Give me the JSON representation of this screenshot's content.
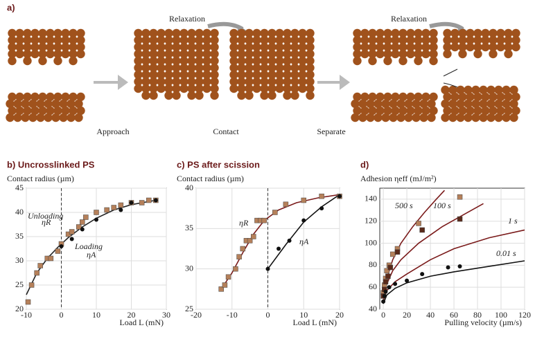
{
  "panel_a": {
    "label": "a)",
    "relax_1": "Relaxation",
    "relax_2": "Relaxation",
    "approach": "Approach",
    "contact": "Contact",
    "separate": "Separate"
  },
  "chart_data": [
    {
      "type": "scatter",
      "title": "b) Uncrosslinked PS",
      "ylabel": "Contact radius (µm)",
      "xlabel": "Load L (mN)",
      "xlim": [
        -10,
        30
      ],
      "ylim": [
        20,
        45
      ],
      "xticks": [
        -10,
        0,
        10,
        20,
        30
      ],
      "yticks": [
        20,
        25,
        30,
        35,
        40,
        45
      ],
      "zero_line": true,
      "annotations": [
        "Unloading",
        "ηR",
        "Loading",
        "ηA"
      ],
      "series": [
        {
          "marker": "line",
          "color": "#222",
          "x": [
            -10,
            -7,
            -4,
            -1,
            2,
            6,
            10,
            15,
            20,
            27
          ],
          "values": [
            23,
            27.5,
            30.5,
            32.8,
            34.8,
            37,
            38.8,
            40.5,
            41.6,
            42.5
          ]
        },
        {
          "marker": "square",
          "color": "#b5805a",
          "x": [
            -9.5,
            -8.5,
            -7,
            -6,
            -4,
            -3,
            -1,
            0,
            2,
            3,
            5,
            6,
            7,
            10,
            13,
            15,
            17,
            20,
            23,
            25,
            27
          ],
          "values": [
            21.5,
            25,
            27.5,
            29,
            30.5,
            30.5,
            32,
            33.5,
            35.5,
            36,
            37,
            38,
            39,
            40,
            40.5,
            41,
            41.5,
            42,
            42,
            42.5,
            42.5
          ]
        },
        {
          "marker": "circle",
          "color": "#111",
          "x": [
            0,
            3,
            6,
            10,
            17,
            20,
            27
          ],
          "values": [
            33,
            34.5,
            36.5,
            38.5,
            40.5,
            42,
            42.5
          ]
        }
      ]
    },
    {
      "type": "scatter",
      "title": "c) PS after scission",
      "ylabel": "Contact radius (µm)",
      "xlabel": "Load L (mN)",
      "xlim": [
        -20,
        20
      ],
      "ylim": [
        25,
        40
      ],
      "xticks": [
        -20,
        -10,
        0,
        10,
        20
      ],
      "yticks": [
        25,
        30,
        35,
        40
      ],
      "zero_line": true,
      "annotations": [
        "ηR",
        "ηA"
      ],
      "series": [
        {
          "marker": "line",
          "color": "#7a1a1a",
          "x": [
            -13,
            -10,
            -7,
            -4,
            -1,
            3,
            8,
            14,
            20
          ],
          "values": [
            27.5,
            29.5,
            32,
            34.3,
            36,
            37.3,
            38.2,
            38.8,
            39.2
          ]
        },
        {
          "marker": "line",
          "color": "#111",
          "x": [
            0,
            5,
            10,
            15,
            20
          ],
          "values": [
            30,
            33,
            35.8,
            37.7,
            39.2
          ]
        },
        {
          "marker": "square",
          "color": "#b5805a",
          "x": [
            -13,
            -12,
            -11,
            -9,
            -8,
            -7,
            -6,
            -5,
            -4,
            -3,
            -2,
            -1,
            2,
            5,
            10,
            15,
            20
          ],
          "values": [
            27.5,
            28,
            29,
            30,
            31.5,
            32.5,
            33.5,
            33.5,
            34,
            36,
            36,
            36,
            37,
            38,
            38.5,
            39,
            39
          ]
        },
        {
          "marker": "circle",
          "color": "#111",
          "x": [
            0,
            3,
            6,
            10,
            15,
            20
          ],
          "values": [
            30,
            32.5,
            33.5,
            36,
            37.5,
            39
          ]
        }
      ]
    },
    {
      "type": "scatter",
      "title": "d)",
      "ylabel": "Adhesion ηeff (mJ/m²)",
      "xlabel": "Pulling velocity (µm/s)",
      "xlim": [
        -3,
        120
      ],
      "ylim": [
        40,
        150
      ],
      "xticks": [
        0,
        20,
        40,
        60,
        80,
        100,
        120
      ],
      "yticks": [
        40,
        60,
        80,
        100,
        120,
        140
      ],
      "zero_line": false,
      "annotations": [
        "500 s",
        "100 s",
        "1 s",
        "0.01 s"
      ],
      "series": [
        {
          "marker": "line",
          "color": "#7a1a1a",
          "x": [
            0,
            3,
            8,
            15,
            25,
            35,
            45,
            52
          ],
          "values": [
            50,
            68,
            85,
            100,
            115,
            128,
            140,
            148
          ]
        },
        {
          "marker": "line",
          "color": "#7a1a1a",
          "x": [
            0,
            3,
            8,
            15,
            30,
            50,
            70,
            85
          ],
          "values": [
            50,
            63,
            75,
            85,
            100,
            115,
            127,
            136
          ]
        },
        {
          "marker": "line",
          "color": "#7a1a1a",
          "x": [
            0,
            3,
            10,
            20,
            40,
            60,
            90,
            120
          ],
          "values": [
            48,
            57,
            65,
            72,
            85,
            95,
            105,
            112
          ]
        },
        {
          "marker": "line",
          "color": "#111",
          "x": [
            0,
            3,
            10,
            20,
            40,
            60,
            90,
            120
          ],
          "values": [
            45,
            53,
            59,
            64,
            70,
            74,
            79,
            84
          ]
        },
        {
          "marker": "square",
          "color": "#b5805a",
          "x": [
            0,
            1,
            2,
            3,
            5,
            8,
            12,
            30,
            65
          ],
          "values": [
            55,
            62,
            68,
            75,
            80,
            90,
            95,
            118,
            142
          ]
        },
        {
          "marker": "square",
          "color": "#5a2a1a",
          "x": [
            0,
            1,
            2,
            4,
            6,
            12,
            33,
            65
          ],
          "values": [
            52,
            58,
            65,
            70,
            78,
            92,
            112,
            122
          ]
        },
        {
          "marker": "circle",
          "color": "#111",
          "x": [
            0,
            1,
            2,
            5,
            10,
            20,
            33,
            55,
            65
          ],
          "values": [
            47,
            52,
            56,
            60,
            63,
            66,
            72,
            78,
            79
          ]
        }
      ]
    }
  ]
}
